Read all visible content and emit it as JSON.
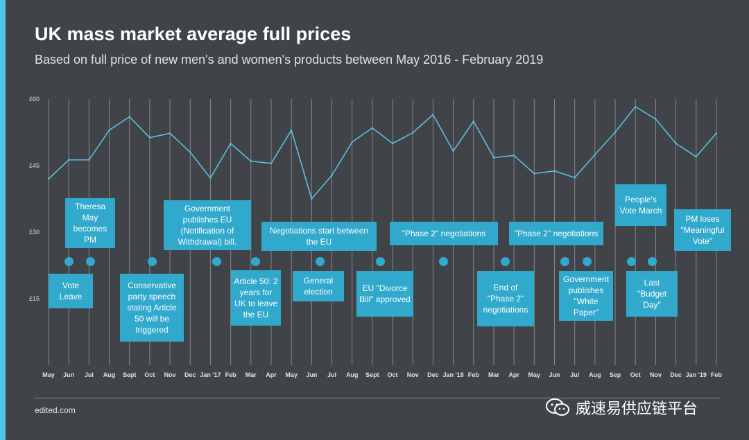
{
  "header": {
    "title": "UK mass market average full prices",
    "subtitle": "Based on full price of new men's and women's products between May 2016 - February 2019"
  },
  "footer": {
    "source": "edited.com",
    "watermark": "威速易供应链平台"
  },
  "colors": {
    "background": "#404348",
    "line": "#5bbfe3",
    "annotation": "#31a9cc",
    "accent_bar": "#4fc3e8",
    "grid": "#85888d"
  },
  "chart_data": {
    "type": "line",
    "title": "UK mass market average full prices",
    "subtitle": "Based on full price of new men's and women's products between May 2016 - February 2019",
    "xlabel": "",
    "ylabel": "",
    "ylim": [
      0,
      60
    ],
    "yticks": [
      "£15",
      "£30",
      "£45",
      "£60"
    ],
    "grid": "vertical",
    "categories": [
      "May",
      "Jun",
      "Jul",
      "Aug",
      "Sept",
      "Oct",
      "Nov",
      "Dec",
      "Jan '17",
      "Feb",
      "Mar",
      "Apr",
      "May",
      "Jun",
      "Jul",
      "Aug",
      "Sept",
      "Oct",
      "Nov",
      "Dec",
      "Jan '18",
      "Feb",
      "Mar",
      "Apr",
      "May",
      "Jun",
      "Jul",
      "Aug",
      "Sep",
      "Oct",
      "Nov",
      "Dec",
      "Jan '19",
      "Feb"
    ],
    "series": [
      {
        "values": [
          42,
          46.3,
          46.3,
          53,
          56,
          51.3,
          52.3,
          48,
          42.2,
          50,
          46,
          45.5,
          53,
          37.5,
          42.8,
          50.3,
          53.5,
          50,
          52.4,
          56.5,
          48.3,
          55,
          46.8,
          47.3,
          43.2,
          43.8,
          42.3,
          47.5,
          52.5,
          58.3,
          55.5,
          50,
          47,
          52.3
        ]
      }
    ],
    "annotations": [
      {
        "text": "Vote Leave",
        "index": 1
      },
      {
        "text": "Theresa May becomes PM",
        "index": 2
      },
      {
        "text": "Conservative party speech stating Article 50 will be triggered",
        "index": 5
      },
      {
        "text": "Government publishes EU (Notification of Withdrawal) bill.",
        "index": 9
      },
      {
        "text": "Article 50: 2 years for UK to leave the EU",
        "index": 11
      },
      {
        "text": "Negotiations start between the EU",
        "index": 14
      },
      {
        "text": "General election",
        "index": 14
      },
      {
        "text": "EU \"Divorce Bill\" approved",
        "index": 17
      },
      {
        "text": "\"Phase 2\" negotiations",
        "index": 20
      },
      {
        "text": "End of \"Phase 2\" negotiations",
        "index": 23
      },
      {
        "text": "\"Phase 2\" negotiations",
        "index": 26
      },
      {
        "text": "Government publishes \"White Paper\"",
        "index": 27
      },
      {
        "text": "People's Vote March",
        "index": 29
      },
      {
        "text": "Last \"Budget Day\"",
        "index": 30
      },
      {
        "text": "PM loses \"Meaningful Vote\"",
        "index": 33
      }
    ]
  }
}
